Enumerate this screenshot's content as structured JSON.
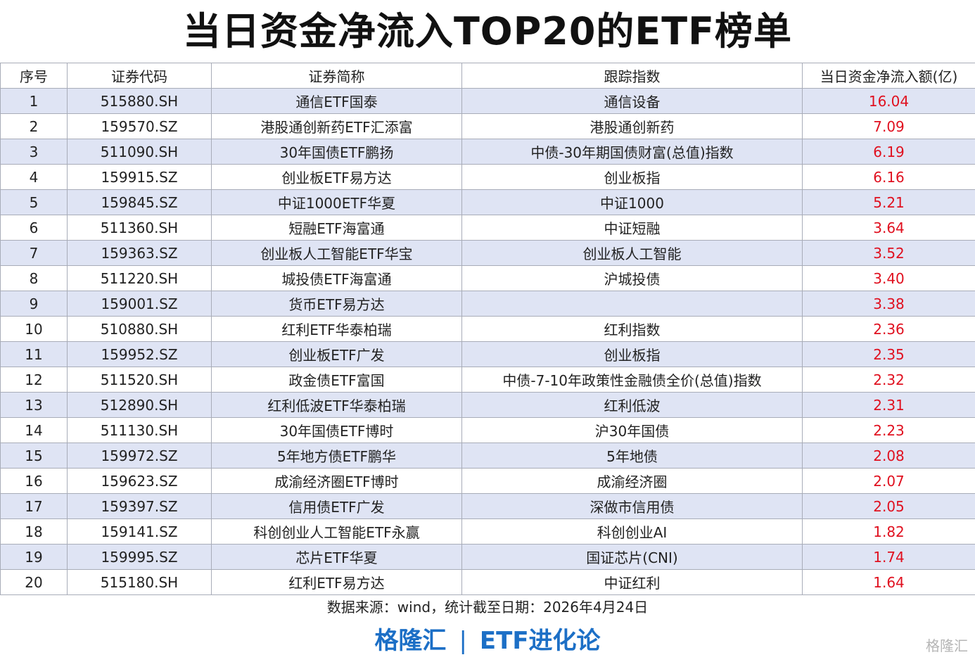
{
  "header": {
    "title": "当日资金净流入TOP20的ETF榜单"
  },
  "table": {
    "columns": [
      "序号",
      "证券代码",
      "证券简称",
      "跟踪指数",
      "当日资金净流入额(亿)"
    ],
    "rows": [
      [
        "1",
        "515880.SH",
        "通信ETF国泰",
        "通信设备",
        "16.04"
      ],
      [
        "2",
        "159570.SZ",
        "港股通创新药ETF汇添富",
        "港股通创新药",
        "7.09"
      ],
      [
        "3",
        "511090.SH",
        "30年国债ETF鹏扬",
        "中债-30年期国债财富(总值)指数",
        "6.19"
      ],
      [
        "4",
        "159915.SZ",
        "创业板ETF易方达",
        "创业板指",
        "6.16"
      ],
      [
        "5",
        "159845.SZ",
        "中证1000ETF华夏",
        "中证1000",
        "5.21"
      ],
      [
        "6",
        "511360.SH",
        "短融ETF海富通",
        "中证短融",
        "3.64"
      ],
      [
        "7",
        "159363.SZ",
        "创业板人工智能ETF华宝",
        "创业板人工智能",
        "3.52"
      ],
      [
        "8",
        "511220.SH",
        "城投债ETF海富通",
        "沪城投债",
        "3.40"
      ],
      [
        "9",
        "159001.SZ",
        "货币ETF易方达",
        null,
        "3.38"
      ],
      [
        "10",
        "510880.SH",
        "红利ETF华泰柏瑞",
        "红利指数",
        "2.36"
      ],
      [
        "11",
        "159952.SZ",
        "创业板ETF广发",
        "创业板指",
        "2.35"
      ],
      [
        "12",
        "511520.SH",
        "政金债ETF富国",
        "中债-7-10年政策性金融债全价(总值)指数",
        "2.32"
      ],
      [
        "13",
        "512890.SH",
        "红利低波ETF华泰柏瑞",
        "红利低波",
        "2.31"
      ],
      [
        "14",
        "511130.SH",
        "30年国债ETF博时",
        "沪30年国债",
        "2.23"
      ],
      [
        "15",
        "159972.SZ",
        "5年地方债ETF鹏华",
        "5年地债",
        "2.08"
      ],
      [
        "16",
        "159623.SZ",
        "成渝经济圈ETF博时",
        "成渝经济圈",
        "2.07"
      ],
      [
        "17",
        "159397.SZ",
        "信用债ETF广发",
        "深做市信用债",
        "2.05"
      ],
      [
        "18",
        "159141.SZ",
        "科创创业人工智能ETF永赢",
        "科创创业AI",
        "1.82"
      ],
      [
        "19",
        "159995.SZ",
        "芯片ETF华夏",
        "国证芯片(CNI)",
        "1.74"
      ],
      [
        "20",
        "515180.SH",
        "红利ETF易方达",
        "中证红利",
        "1.64"
      ]
    ]
  },
  "footer": {
    "source": "数据来源：wind，统计截至日期：2026年4月24日",
    "brand": "格隆汇",
    "column": "ETF进化论",
    "watermark": "格隆汇"
  }
}
